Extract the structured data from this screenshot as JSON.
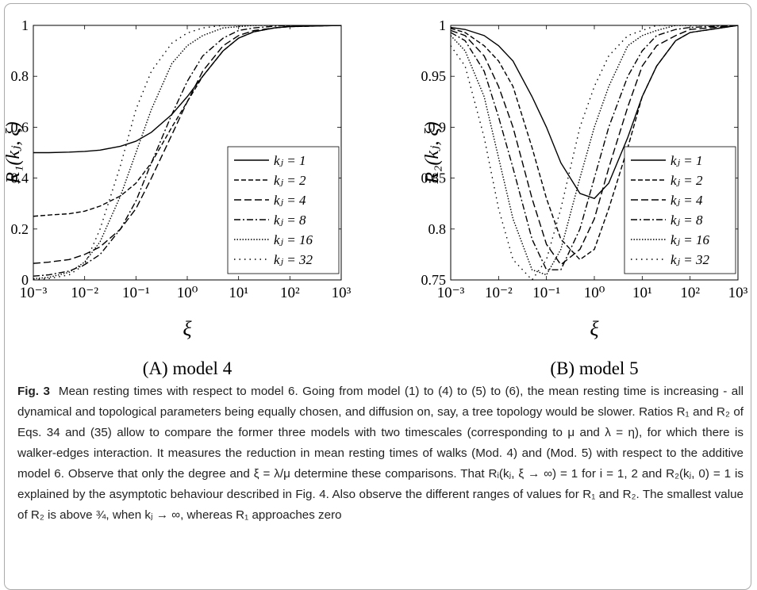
{
  "chart_data": [
    {
      "type": "line",
      "title": "(A) model 4",
      "xlabel": "ξ",
      "ylabel": "R₁(kⱼ, ξ)",
      "xscale": "log",
      "x": [
        0.001,
        0.002,
        0.005,
        0.01,
        0.02,
        0.05,
        0.1,
        0.2,
        0.5,
        1,
        2,
        5,
        10,
        20,
        50,
        100,
        1000
      ],
      "xlim": [
        0.001,
        1000
      ],
      "xticks": [
        {
          "value": 0.001,
          "label": "10⁻³"
        },
        {
          "value": 0.01,
          "label": "10⁻²"
        },
        {
          "value": 0.1,
          "label": "10⁻¹"
        },
        {
          "value": 1,
          "label": "10⁰"
        },
        {
          "value": 10,
          "label": "10¹"
        },
        {
          "value": 100,
          "label": "10²"
        },
        {
          "value": 1000,
          "label": "10³"
        }
      ],
      "ylim": [
        0,
        1
      ],
      "yticks": [
        0,
        0.2,
        0.4,
        0.6,
        0.8,
        1
      ],
      "legend": "lower right",
      "series": [
        {
          "name": "kⱼ = 1",
          "color": "#000000",
          "style": "solid",
          "values": [
            0.5,
            0.5,
            0.502,
            0.505,
            0.51,
            0.525,
            0.545,
            0.58,
            0.65,
            0.72,
            0.8,
            0.9,
            0.95,
            0.975,
            0.99,
            0.995,
            1
          ]
        },
        {
          "name": "kⱼ = 2",
          "color": "#000000",
          "style": "dashed",
          "values": [
            0.25,
            0.255,
            0.26,
            0.27,
            0.29,
            0.33,
            0.38,
            0.46,
            0.6,
            0.7,
            0.8,
            0.9,
            0.95,
            0.975,
            0.99,
            0.995,
            1
          ]
        },
        {
          "name": "kⱼ = 4",
          "color": "#000000",
          "style": "long-dashed",
          "values": [
            0.065,
            0.07,
            0.08,
            0.1,
            0.13,
            0.2,
            0.28,
            0.4,
            0.57,
            0.7,
            0.82,
            0.92,
            0.96,
            0.98,
            0.99,
            0.997,
            1
          ]
        },
        {
          "name": "kⱼ = 8",
          "color": "#000000",
          "style": "dash-dot",
          "values": [
            0.015,
            0.02,
            0.035,
            0.06,
            0.1,
            0.2,
            0.31,
            0.46,
            0.65,
            0.78,
            0.88,
            0.95,
            0.98,
            0.99,
            0.997,
            1,
            1
          ]
        },
        {
          "name": "kⱼ = 16",
          "color": "#000000",
          "style": "densely-dotted",
          "values": [
            0.005,
            0.01,
            0.03,
            0.07,
            0.15,
            0.33,
            0.5,
            0.67,
            0.85,
            0.92,
            0.96,
            0.99,
            0.995,
            1,
            1,
            1,
            1
          ]
        },
        {
          "name": "kⱼ = 32",
          "color": "#000000",
          "style": "loosely-dotted",
          "values": [
            0.002,
            0.005,
            0.02,
            0.06,
            0.2,
            0.45,
            0.67,
            0.82,
            0.93,
            0.97,
            0.99,
            1,
            1,
            1,
            1,
            1,
            1
          ]
        }
      ]
    },
    {
      "type": "line",
      "title": "(B) model 5",
      "xlabel": "ξ",
      "ylabel": "R₂(kⱼ, ξ)",
      "xscale": "log",
      "x": [
        0.001,
        0.002,
        0.005,
        0.01,
        0.02,
        0.05,
        0.1,
        0.2,
        0.5,
        1,
        2,
        5,
        10,
        20,
        50,
        100,
        1000
      ],
      "xlim": [
        0.001,
        1000
      ],
      "xticks": [
        {
          "value": 0.001,
          "label": "10⁻³"
        },
        {
          "value": 0.01,
          "label": "10⁻²"
        },
        {
          "value": 0.1,
          "label": "10⁻¹"
        },
        {
          "value": 1,
          "label": "10⁰"
        },
        {
          "value": 10,
          "label": "10¹"
        },
        {
          "value": 100,
          "label": "10²"
        },
        {
          "value": 1000,
          "label": "10³"
        }
      ],
      "ylim": [
        0.75,
        1
      ],
      "yticks": [
        0.75,
        0.8,
        0.85,
        0.9,
        0.95,
        1
      ],
      "legend": "lower right",
      "series": [
        {
          "name": "kⱼ = 1",
          "color": "#000000",
          "style": "solid",
          "values": [
            0.998,
            0.996,
            0.99,
            0.98,
            0.965,
            0.93,
            0.9,
            0.865,
            0.835,
            0.83,
            0.845,
            0.89,
            0.93,
            0.96,
            0.985,
            0.993,
            1
          ]
        },
        {
          "name": "kⱼ = 2",
          "color": "#000000",
          "style": "dashed",
          "values": [
            0.997,
            0.993,
            0.98,
            0.965,
            0.94,
            0.88,
            0.83,
            0.79,
            0.77,
            0.78,
            0.82,
            0.88,
            0.93,
            0.96,
            0.985,
            0.993,
            1
          ]
        },
        {
          "name": "kⱼ = 4",
          "color": "#000000",
          "style": "long-dashed",
          "values": [
            0.995,
            0.99,
            0.97,
            0.94,
            0.9,
            0.83,
            0.785,
            0.765,
            0.78,
            0.81,
            0.86,
            0.92,
            0.96,
            0.98,
            0.99,
            0.996,
            1
          ]
        },
        {
          "name": "kⱼ = 8",
          "color": "#000000",
          "style": "dash-dot",
          "values": [
            0.993,
            0.985,
            0.955,
            0.91,
            0.86,
            0.79,
            0.76,
            0.76,
            0.8,
            0.85,
            0.9,
            0.95,
            0.975,
            0.99,
            0.996,
            0.998,
            1
          ]
        },
        {
          "name": "kⱼ = 16",
          "color": "#000000",
          "style": "densely-dotted",
          "values": [
            0.99,
            0.975,
            0.93,
            0.87,
            0.81,
            0.76,
            0.755,
            0.78,
            0.85,
            0.9,
            0.94,
            0.98,
            0.99,
            0.995,
            1,
            1,
            1
          ]
        },
        {
          "name": "kⱼ = 32",
          "color": "#000000",
          "style": "loosely-dotted",
          "values": [
            0.98,
            0.96,
            0.89,
            0.82,
            0.77,
            0.75,
            0.77,
            0.82,
            0.9,
            0.94,
            0.97,
            0.99,
            0.995,
            1,
            1,
            1,
            1
          ]
        }
      ]
    }
  ],
  "caption": {
    "label": "Fig. 3",
    "text": "Mean resting times with respect to model 6. Going from model (1) to (4) to (5) to (6), the mean resting time is increasing - all dynamical and topological parameters being equally chosen, and diffusion on, say, a tree topology would be slower. Ratios R₁ and R₂ of Eqs. 34 and (35) allow to compare the former three models with two timescales (corresponding to μ and λ = η), for which there is walker-edges interaction. It measures the reduction in mean resting times of walks (Mod. 4) and (Mod. 5) with respect to the additive model 6. Observe that only the degree and ξ = λ/μ determine these comparisons. That Rᵢ(kⱼ, ξ → ∞) = 1 for i = 1, 2 and R₂(kⱼ, 0) = 1 is explained by the asymptotic behaviour described in Fig. 4. Also observe the different ranges of values for R₁ and R₂. The smallest value of R₂ is above ¾, when kⱼ → ∞, whereas R₁ approaches zero"
  }
}
